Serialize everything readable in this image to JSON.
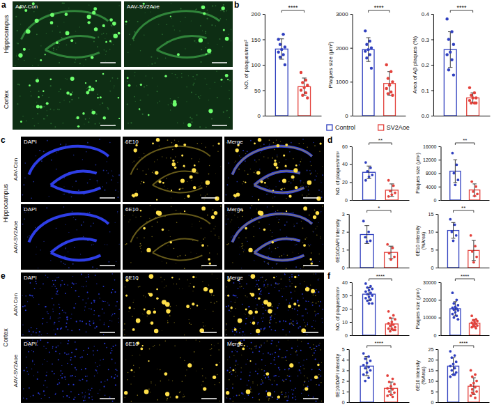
{
  "figure": {
    "panel_letters": [
      "a",
      "b",
      "c",
      "d",
      "e",
      "f"
    ],
    "image_panels": [
      {
        "row_labels": [
          "Hippocampus",
          "Cortex"
        ],
        "col_labels": [
          "AAV-Con",
          "AAV-SV2Aoe"
        ]
      },
      {
        "group_label": "Hippocampus",
        "row_labels": [
          "AAV-Con",
          "AAV-SV2Aoe"
        ],
        "col_labels": [
          "DAPI",
          "6E10",
          "Merge"
        ]
      },
      {
        "group_label": "Cortex",
        "row_labels": [
          "AAV-Con",
          "AAV-SV2Aoe"
        ],
        "col_labels": [
          "DAPI",
          "6E10",
          "Merge"
        ]
      }
    ]
  },
  "chart_data": [
    {
      "type": "bar",
      "y_label": "NO. of plaques/mm²",
      "categories": [
        null
      ],
      "ylim": [
        0,
        200
      ],
      "yticks": [
        0,
        50,
        100,
        150,
        200
      ],
      "annotation": "****",
      "legend": "bottom",
      "series": [
        {
          "name": "Control",
          "color": "#2f3fbf",
          "values": [
            131
          ],
          "errors": [
            20
          ],
          "points": [
            [
              150,
              160,
              140,
              135,
              130,
              125,
              120,
              115,
              100
            ]
          ]
        },
        {
          "name": "SV2Aoe",
          "color": "#e3413b",
          "values": [
            57
          ],
          "errors": [
            17
          ],
          "points": [
            [
              85,
              70,
              65,
              60,
              55,
              50,
              45,
              40,
              35
            ]
          ]
        }
      ]
    },
    {
      "type": "bar",
      "y_label": "Plaques size (μm²)",
      "categories": [
        null
      ],
      "ylim": [
        0,
        3000
      ],
      "yticks": [
        0,
        1000,
        2000,
        3000
      ],
      "annotation": "****",
      "series": [
        {
          "name": "Control",
          "color": "#2f3fbf",
          "values": [
            1950
          ],
          "errors": [
            350
          ],
          "points": [
            [
              2500,
              2200,
              2100,
              2000,
              1950,
              1900,
              1800,
              1700,
              1400
            ]
          ]
        },
        {
          "name": "SV2Aoe",
          "color": "#e3413b",
          "values": [
            950
          ],
          "errors": [
            350
          ],
          "points": [
            [
              1500,
              1300,
              1100,
              1000,
              900,
              800,
              700,
              650,
              600
            ]
          ]
        }
      ]
    },
    {
      "type": "bar",
      "y_label": "Area of Aβ plaques (%)",
      "categories": [
        null
      ],
      "ylim": [
        0,
        0.4
      ],
      "yticks": [
        {
          "value": 0,
          "label": "0.0"
        },
        {
          "value": 0.1,
          "label": "0.1"
        },
        {
          "value": 0.2,
          "label": "0.2"
        },
        {
          "value": 0.3,
          "label": "0.3"
        },
        {
          "value": 0.4,
          "label": "0.4"
        }
      ],
      "annotation": "****",
      "series": [
        {
          "name": "Control",
          "color": "#2f3fbf",
          "values": [
            0.26
          ],
          "errors": [
            0.07
          ],
          "points": [
            [
              0.38,
              0.33,
              0.3,
              0.28,
              0.25,
              0.24,
              0.22,
              0.18,
              0.16
            ]
          ]
        },
        {
          "name": "SV2Aoe",
          "color": "#e3413b",
          "values": [
            0.07
          ],
          "errors": [
            0.02
          ],
          "points": [
            [
              0.11,
              0.09,
              0.08,
              0.07,
              0.07,
              0.06,
              0.05,
              0.05,
              0.05
            ]
          ]
        }
      ]
    },
    {
      "type": "bar",
      "y_label": "NO. of plaques/mm²",
      "categories": [
        null
      ],
      "ylim": [
        0,
        60
      ],
      "yticks": [
        0,
        20,
        40,
        60
      ],
      "annotation": "**",
      "series": [
        {
          "color": "#2f3fbf",
          "values": [
            31
          ],
          "errors": [
            7
          ],
          "points": [
            [
              42,
              36,
              32,
              28,
              26,
              22
            ]
          ]
        },
        {
          "color": "#e3413b",
          "values": [
            11
          ],
          "errors": [
            7
          ],
          "points": [
            [
              22,
              16,
              10,
              8,
              6,
              4
            ]
          ]
        }
      ]
    },
    {
      "type": "bar",
      "y_label": "Plaques size (μm²)",
      "categories": [
        null
      ],
      "ylim": [
        0,
        16000
      ],
      "yticks": [
        0,
        4000,
        8000,
        12000,
        16000
      ],
      "annotation": "**",
      "series": [
        {
          "color": "#2f3fbf",
          "values": [
            8600
          ],
          "errors": [
            3400
          ],
          "points": [
            [
              14000,
              10500,
              8000,
              6000,
              4500
            ]
          ]
        },
        {
          "color": "#e3413b",
          "values": [
            3000
          ],
          "errors": [
            1800
          ],
          "points": [
            [
              5500,
              4000,
              2500,
              1800,
              1200
            ]
          ]
        }
      ]
    },
    {
      "type": "bar",
      "y_label": "6E10/DAPI intensity",
      "categories": [
        null
      ],
      "ylim": [
        0,
        3
      ],
      "yticks": [
        0,
        1,
        2,
        3
      ],
      "annotation": "*",
      "series": [
        {
          "color": "#2f3fbf",
          "values": [
            1.85
          ],
          "errors": [
            0.5
          ],
          "points": [
            [
              2.6,
              2.0,
              1.7,
              1.5,
              1.45
            ]
          ]
        },
        {
          "color": "#e3413b",
          "values": [
            0.85
          ],
          "errors": [
            0.35
          ],
          "points": [
            [
              1.3,
              1.1,
              0.8,
              0.6,
              0.45
            ]
          ]
        }
      ]
    },
    {
      "type": "bar",
      "y_label": "6E10 intensity (%Area)",
      "categories": [
        null
      ],
      "ylim": [
        0,
        15
      ],
      "yticks": [
        0,
        5,
        10,
        15
      ],
      "annotation": "**",
      "series": [
        {
          "color": "#2f3fbf",
          "values": [
            10.4
          ],
          "errors": [
            2.2
          ],
          "points": [
            [
              13.5,
              12,
              10,
              9,
              7.5
            ]
          ]
        },
        {
          "color": "#e3413b",
          "values": [
            4.8
          ],
          "errors": [
            2.8
          ],
          "points": [
            [
              9,
              6,
              4.5,
              3,
              1.5
            ]
          ]
        }
      ]
    },
    {
      "type": "bar",
      "y_label": "NO. of plaques/mm²",
      "categories": [
        null
      ],
      "ylim": [
        0,
        40
      ],
      "yticks": [
        0,
        10,
        20,
        30,
        40
      ],
      "annotation": "****",
      "series": [
        {
          "color": "#2f3fbf",
          "values": [
            31
          ],
          "errors": [
            5
          ],
          "points": [
            [
              39,
              37,
              36,
              35,
              34,
              33,
              32,
              31,
              30,
              29,
              28,
              27,
              26,
              24,
              24
            ]
          ]
        },
        {
          "color": "#e3413b",
          "values": [
            8.5
          ],
          "errors": [
            4.5
          ],
          "points": [
            [
              18,
              15,
              13,
              12,
              10,
              9,
              8,
              7,
              6,
              5,
              5,
              4,
              3,
              4,
              8
            ]
          ]
        }
      ]
    },
    {
      "type": "bar",
      "y_label": "Plaques size (μm²)",
      "categories": [
        null
      ],
      "ylim": [
        0,
        30000
      ],
      "yticks": [
        0,
        10000,
        20000,
        30000
      ],
      "annotation": "****",
      "series": [
        {
          "color": "#2f3fbf",
          "values": [
            15000
          ],
          "errors": [
            4000
          ],
          "points": [
            [
              24000,
              20000,
              18000,
              17000,
              16000,
              15500,
              15000,
              14500,
              14000,
              13000,
              12000,
              11000,
              10000,
              9000
            ]
          ]
        },
        {
          "color": "#e3413b",
          "values": [
            6800
          ],
          "errors": [
            2000
          ],
          "points": [
            [
              11000,
              9000,
              8500,
              8000,
              7500,
              7000,
              6500,
              6000,
              5500,
              5000,
              4500,
              4000,
              5000
            ]
          ]
        }
      ]
    },
    {
      "type": "bar",
      "y_label": "6E10/DAPI intensity",
      "categories": [
        null
      ],
      "ylim": [
        0,
        5
      ],
      "yticks": [
        0,
        1,
        2,
        3,
        4,
        5
      ],
      "annotation": "****",
      "series": [
        {
          "color": "#2f3fbf",
          "values": [
            3.4
          ],
          "errors": [
            0.9
          ],
          "points": [
            [
              4.6,
              4.3,
              4.1,
              3.9,
              3.7,
              3.5,
              3.3,
              3.2,
              3.0,
              2.8,
              2.6,
              2.3,
              2.0
            ]
          ]
        },
        {
          "color": "#e3413b",
          "values": [
            1.3
          ],
          "errors": [
            0.6
          ],
          "points": [
            [
              2.5,
              2.2,
              1.9,
              1.7,
              1.5,
              1.3,
              1.2,
              1.0,
              0.9,
              0.7,
              0.6,
              0.5
            ]
          ]
        }
      ]
    },
    {
      "type": "bar",
      "y_label": "6E10 intensity (%Area)",
      "categories": [
        null
      ],
      "ylim": [
        0,
        25
      ],
      "yticks": [
        0,
        5,
        10,
        15,
        20,
        25
      ],
      "annotation": "****",
      "series": [
        {
          "color": "#2f3fbf",
          "values": [
            17
          ],
          "errors": [
            4
          ],
          "points": [
            [
              24,
              22,
              21,
              19,
              18,
              17,
              16,
              15,
              14,
              13,
              12,
              13
            ]
          ]
        },
        {
          "color": "#e3413b",
          "values": [
            7.5
          ],
          "errors": [
            4
          ],
          "points": [
            [
              15,
              13,
              12,
              10,
              9,
              8,
              7,
              6,
              5,
              4,
              3,
              2,
              4.5
            ]
          ]
        }
      ]
    }
  ]
}
